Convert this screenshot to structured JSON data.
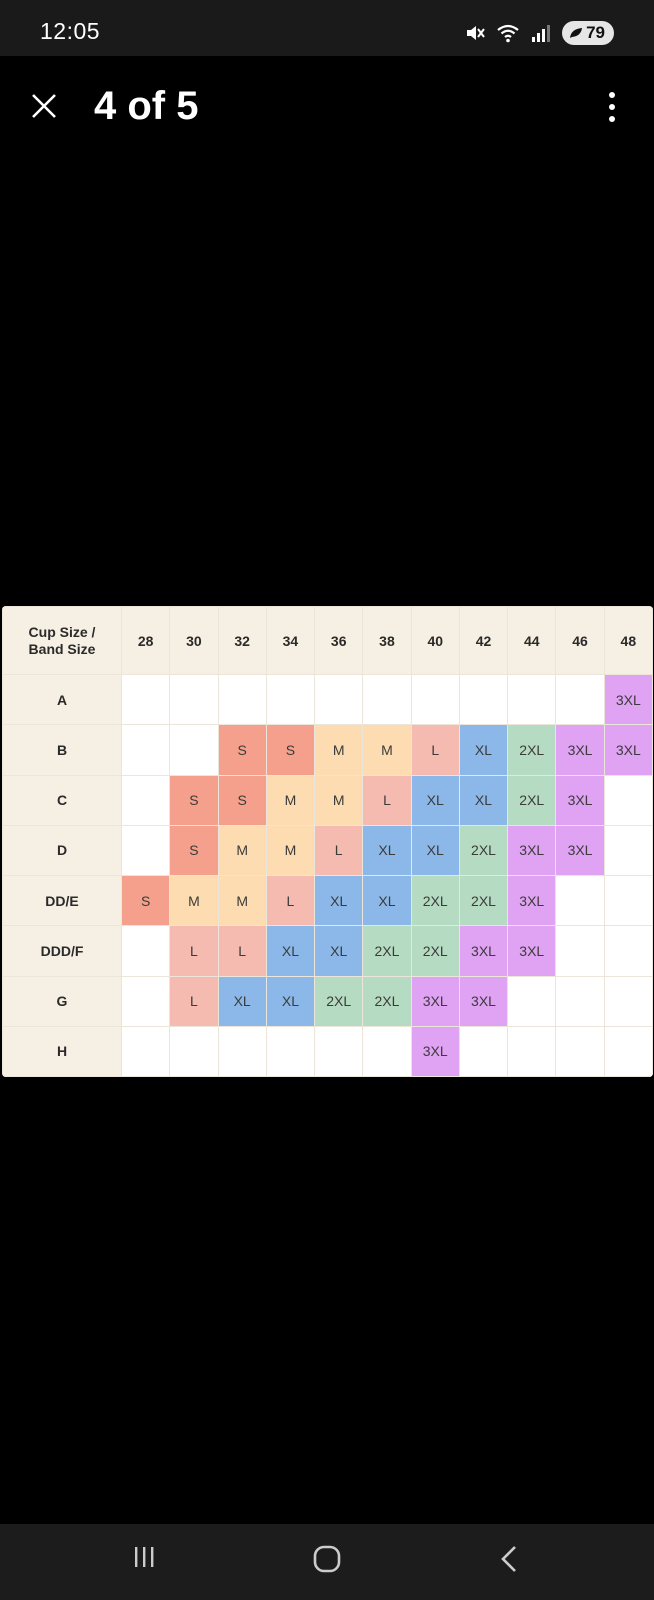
{
  "status_bar": {
    "time": "12:05",
    "battery": "79",
    "icons": [
      "mute-icon",
      "wifi-icon",
      "signal-icon",
      "battery-icon"
    ]
  },
  "header": {
    "title": "4 of 5",
    "close_icon": "close-icon",
    "menu_icon": "more-vert-icon"
  },
  "size_chart": {
    "corner_line1": "Cup Size /",
    "corner_line2": "Band Size",
    "band_sizes": [
      "28",
      "30",
      "32",
      "34",
      "36",
      "38",
      "40",
      "42",
      "44",
      "46",
      "48"
    ],
    "rows": [
      {
        "cup": "A",
        "cells": [
          "",
          "",
          "",
          "",
          "",
          "",
          "",
          "",
          "",
          "",
          "3XL"
        ]
      },
      {
        "cup": "B",
        "cells": [
          "",
          "",
          "S",
          "S",
          "M",
          "M",
          "L",
          "XL",
          "2XL",
          "3XL",
          "3XL"
        ]
      },
      {
        "cup": "C",
        "cells": [
          "",
          "S",
          "S",
          "M",
          "M",
          "L",
          "XL",
          "XL",
          "2XL",
          "3XL",
          ""
        ]
      },
      {
        "cup": "D",
        "cells": [
          "",
          "S",
          "M",
          "M",
          "L",
          "XL",
          "XL",
          "2XL",
          "3XL",
          "3XL",
          ""
        ]
      },
      {
        "cup": "DD/E",
        "cells": [
          "S",
          "M",
          "M",
          "L",
          "XL",
          "XL",
          "2XL",
          "2XL",
          "3XL",
          "",
          ""
        ]
      },
      {
        "cup": "DDD/F",
        "cells": [
          "",
          "L",
          "L",
          "XL",
          "XL",
          "2XL",
          "2XL",
          "3XL",
          "3XL",
          "",
          ""
        ]
      },
      {
        "cup": "G",
        "cells": [
          "",
          "L",
          "XL",
          "XL",
          "2XL",
          "2XL",
          "3XL",
          "3XL",
          "",
          "",
          ""
        ]
      },
      {
        "cup": "H",
        "cells": [
          "",
          "",
          "",
          "",
          "",
          "",
          "3XL",
          "",
          "",
          "",
          ""
        ]
      }
    ],
    "size_colors": {
      "S": "#f4a08c",
      "M": "#fcdcb0",
      "L": "#f5bbb0",
      "XL": "#8bb8e8",
      "2XL": "#b5dcc2",
      "3XL": "#e0a2f2"
    }
  },
  "nav_bar": {
    "icons": [
      "recents-icon",
      "home-icon",
      "back-icon"
    ]
  }
}
